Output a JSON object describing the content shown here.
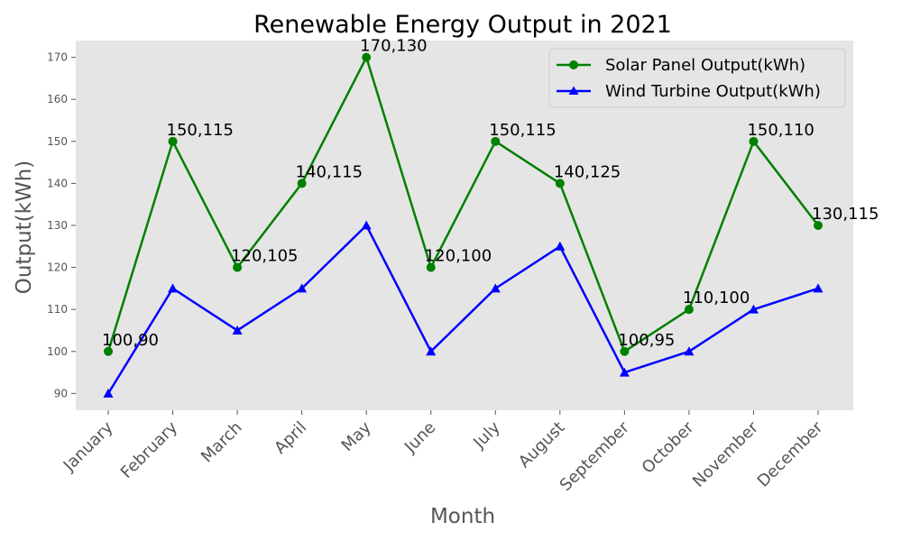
{
  "chart_data": {
    "type": "line",
    "title": "Renewable Energy Output in 2021",
    "xlabel": "Month",
    "ylabel": "Output(kWh)",
    "categories": [
      "January",
      "February",
      "March",
      "April",
      "May",
      "June",
      "July",
      "August",
      "September",
      "October",
      "November",
      "December"
    ],
    "ylim": [
      86,
      174
    ],
    "yticks": [
      90,
      100,
      110,
      120,
      130,
      140,
      150,
      160,
      170
    ],
    "grid": false,
    "legend_position": "top-right",
    "background_color": "#e5e5e5",
    "series": [
      {
        "name": "Solar Panel Output(kWh)",
        "color": "#008000",
        "marker": "circle",
        "values": [
          100,
          150,
          120,
          140,
          170,
          120,
          150,
          140,
          100,
          110,
          150,
          130
        ]
      },
      {
        "name": "Wind Turbine Output(kWh)",
        "color": "#0000ff",
        "marker": "triangle",
        "values": [
          90,
          115,
          105,
          115,
          130,
          100,
          115,
          125,
          95,
          100,
          110,
          115
        ]
      }
    ],
    "annotations": [
      "100,90",
      "150,115",
      "120,105",
      "140,115",
      "170,130",
      "120,100",
      "150,115",
      "140,125",
      "100,95",
      "110,100",
      "150,110",
      "130,115"
    ]
  }
}
